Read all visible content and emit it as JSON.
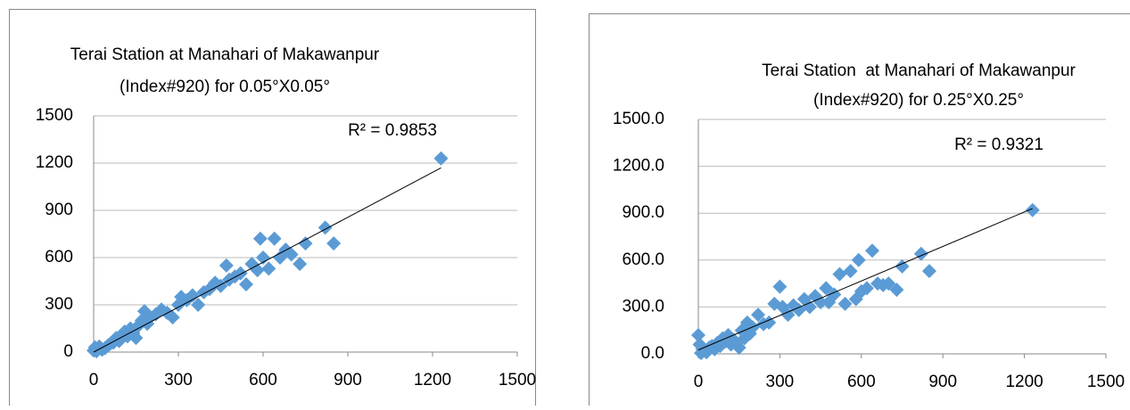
{
  "chart_data": [
    {
      "type": "scatter",
      "title": [
        "Terai Station at Manahari of Makawanpur",
        "(Index#920) for 0.05°X0.05°"
      ],
      "annotation": "R² = 0.9853",
      "color": "#5b9bd5",
      "x": [
        0,
        5,
        10,
        15,
        20,
        30,
        40,
        50,
        60,
        70,
        80,
        90,
        100,
        110,
        120,
        130,
        140,
        150,
        160,
        170,
        180,
        190,
        200,
        220,
        240,
        260,
        280,
        300,
        310,
        330,
        350,
        370,
        390,
        410,
        430,
        450,
        470,
        480,
        500,
        520,
        540,
        560,
        580,
        590,
        600,
        620,
        640,
        660,
        680,
        700,
        730,
        750,
        820,
        850,
        1230
      ],
      "values": [
        10,
        30,
        5,
        20,
        35,
        15,
        25,
        40,
        55,
        60,
        90,
        70,
        110,
        130,
        100,
        150,
        120,
        90,
        170,
        200,
        260,
        180,
        220,
        240,
        270,
        250,
        220,
        300,
        350,
        330,
        360,
        300,
        380,
        400,
        440,
        420,
        550,
        460,
        480,
        500,
        430,
        560,
        520,
        720,
        600,
        530,
        720,
        600,
        650,
        620,
        560,
        690,
        790,
        690,
        1230
      ],
      "trendline": {
        "x": [
          0,
          1230
        ],
        "values": [
          0,
          1170
        ]
      },
      "xlim": [
        0,
        1500
      ],
      "xticks": [
        0,
        300,
        600,
        900,
        1200,
        1500
      ],
      "ylim": [
        0,
        1500
      ],
      "yticks": [
        0,
        300,
        600,
        900,
        1200,
        1500
      ],
      "grid": true
    },
    {
      "type": "scatter",
      "title": [
        "Terai Station  at Manahari of Makawanpur",
        "(Index#920) for 0.25°X0.25°"
      ],
      "annotation": "R² = 0.9321",
      "color": "#5b9bd5",
      "x": [
        0,
        5,
        10,
        15,
        20,
        30,
        40,
        50,
        60,
        70,
        80,
        90,
        100,
        110,
        120,
        130,
        140,
        150,
        160,
        170,
        180,
        190,
        200,
        220,
        240,
        260,
        280,
        300,
        310,
        330,
        350,
        370,
        390,
        410,
        430,
        450,
        470,
        480,
        500,
        520,
        540,
        560,
        580,
        590,
        600,
        620,
        640,
        660,
        680,
        700,
        730,
        750,
        820,
        850,
        1230
      ],
      "values": [
        120,
        60,
        5,
        30,
        20,
        10,
        40,
        50,
        30,
        70,
        50,
        100,
        80,
        120,
        60,
        90,
        70,
        40,
        150,
        100,
        200,
        130,
        170,
        250,
        190,
        200,
        320,
        430,
        300,
        250,
        310,
        280,
        350,
        300,
        370,
        330,
        420,
        330,
        380,
        510,
        320,
        530,
        350,
        600,
        400,
        420,
        660,
        450,
        440,
        450,
        410,
        560,
        640,
        530,
        920
      ],
      "trendline": {
        "x": [
          0,
          1230
        ],
        "values": [
          25,
          930
        ]
      },
      "xlim": [
        0,
        1500
      ],
      "xticks": [
        0,
        300,
        600,
        900,
        1200,
        1500
      ],
      "ylim": [
        0,
        1500
      ],
      "yticks": [
        {
          "value": 0,
          "label": "0.0"
        },
        {
          "value": 300,
          "label": "300.0"
        },
        {
          "value": 600,
          "label": "600.0"
        },
        {
          "value": 900,
          "label": "900.0"
        },
        {
          "value": 1200,
          "label": "1200.0"
        },
        {
          "value": 1500,
          "label": "1500.0"
        }
      ],
      "grid": true
    }
  ]
}
